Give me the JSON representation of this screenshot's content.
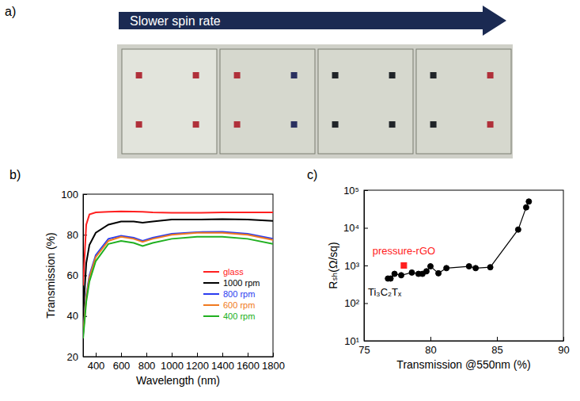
{
  "chart_data": [
    {
      "type": "photo",
      "panel_label": "a)",
      "arrow_text": "Slower spin rate"
    },
    {
      "type": "line",
      "panel_label": "b)",
      "x_label": "Wavelength (nm)",
      "y_label": "Transmission (%)",
      "x": [
        300,
        325,
        350,
        400,
        500,
        600,
        700,
        770,
        850,
        1000,
        1200,
        1400,
        1600,
        1800
      ],
      "series": [
        {
          "name": "glass",
          "color": "#ff2020",
          "values": [
            55,
            85,
            90,
            91,
            91.3,
            91.5,
            91.4,
            91.3,
            91,
            90.8,
            90.8,
            91,
            91,
            91
          ]
        },
        {
          "name": "1000 rpm",
          "color": "#000000",
          "values": [
            40,
            66,
            75,
            81,
            85,
            86.5,
            86.5,
            86,
            86.5,
            87.5,
            87.5,
            87.7,
            87.5,
            86.8
          ]
        },
        {
          "name": "800 rpm",
          "color": "#2a3cf0",
          "values": [
            31,
            50,
            60,
            70,
            78,
            79.5,
            78.5,
            77,
            78.5,
            80.5,
            81.3,
            81.5,
            80.5,
            78
          ]
        },
        {
          "name": "600 rpm",
          "color": "#f07a20",
          "values": [
            31,
            49,
            59,
            69,
            77,
            79,
            78,
            76.5,
            78,
            80,
            81,
            81,
            80,
            77.5
          ]
        },
        {
          "name": "400 rpm",
          "color": "#20b020",
          "values": [
            29,
            47,
            57,
            67,
            75.5,
            77,
            76,
            74.5,
            76,
            78,
            79,
            79,
            78,
            75.5
          ]
        }
      ],
      "xlim": [
        300,
        1800
      ],
      "xticks": [
        400,
        600,
        800,
        1000,
        1200,
        1400,
        1600,
        1800
      ],
      "ylim": [
        20,
        100
      ],
      "yticks": [
        20,
        40,
        60,
        80,
        100
      ],
      "legend": "right"
    },
    {
      "type": "scatter",
      "panel_label": "c)",
      "x_label": "Transmission @550nm (%)",
      "y_label": "Rₛₕ(Ω/sq)",
      "series": [
        {
          "name": "Ti₃C₂Tₓ",
          "color": "#000000",
          "marker": "circle",
          "line_style": "solid",
          "x": [
            76.8,
            77.0,
            77.3,
            77.8,
            78.6,
            79.1,
            79.4,
            79.7,
            80.0,
            80.6,
            81.2,
            82.9,
            83.4,
            84.5,
            86.6,
            87.2,
            87.4
          ],
          "values": [
            450,
            450,
            600,
            550,
            650,
            600,
            600,
            700,
            950,
            620,
            850,
            950,
            850,
            900,
            9000,
            35000,
            50000
          ]
        },
        {
          "name": "pressure-rGO",
          "color": "#ff2020",
          "marker": "square",
          "line_style": "none",
          "x": [
            78.0
          ],
          "values": [
            1000
          ]
        }
      ],
      "xlim": [
        75,
        90
      ],
      "xticks": [
        75,
        80,
        85,
        90
      ],
      "ylim": [
        10,
        100000
      ],
      "yticks": [
        {
          "value": 10,
          "label": "10¹"
        },
        {
          "value": 100,
          "label": "10²"
        },
        {
          "value": 1000,
          "label": "10³"
        },
        {
          "value": 10000,
          "label": "10⁴"
        },
        {
          "value": 100000,
          "label": "10⁵"
        }
      ],
      "log": "y"
    }
  ]
}
